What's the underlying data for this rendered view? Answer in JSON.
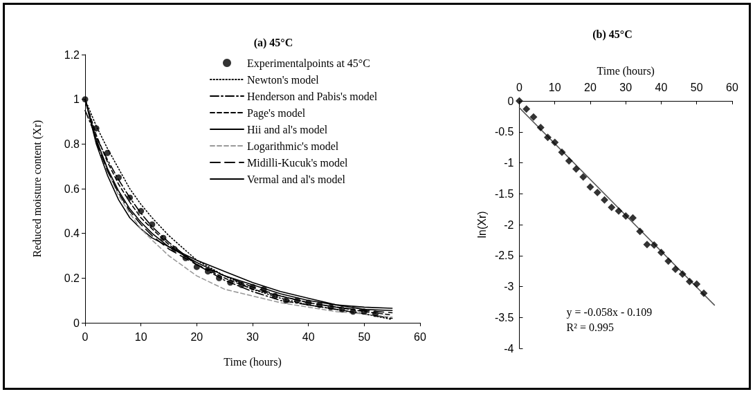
{
  "chart_data": [
    {
      "type": "line",
      "title": "(a) 45°C",
      "xlabel": "Time (hours)",
      "ylabel": "Reduced moisture content (Xr)",
      "xlim": [
        0,
        60
      ],
      "xticks": [
        0,
        10,
        20,
        30,
        40,
        50,
        60
      ],
      "ylim": [
        0,
        1.2
      ],
      "yticks": [
        0,
        0.2,
        0.4,
        0.6,
        0.8,
        1,
        1.2
      ],
      "grid": false,
      "legend": "top right",
      "series": [
        {
          "name": "Experimentalpoints at 45°C",
          "type": "scatter",
          "marker": "circle",
          "color": "#000000",
          "x": [
            0,
            2,
            4,
            6,
            8,
            10,
            12,
            14,
            16,
            18,
            20,
            22,
            24,
            26,
            28,
            30,
            32,
            34,
            36,
            38,
            40,
            42,
            44,
            46,
            48,
            50,
            52
          ],
          "values": [
            1,
            0.87,
            0.76,
            0.65,
            0.56,
            0.5,
            0.44,
            0.38,
            0.33,
            0.29,
            0.25,
            0.23,
            0.2,
            0.18,
            0.17,
            0.16,
            0.15,
            0.12,
            0.1,
            0.1,
            0.09,
            0.08,
            0.07,
            0.06,
            0.05,
            0.05,
            0.04
          ]
        },
        {
          "name": "Newton's model",
          "line_style": "dotted",
          "color": "#000000",
          "x": [
            0,
            2,
            4,
            6,
            8,
            10,
            12,
            15,
            20,
            25,
            30,
            35,
            40,
            45,
            50,
            55
          ],
          "values": [
            1,
            0.88,
            0.78,
            0.69,
            0.6,
            0.53,
            0.47,
            0.39,
            0.28,
            0.21,
            0.15,
            0.11,
            0.08,
            0.06,
            0.04,
            0.015
          ]
        },
        {
          "name": "Henderson and Pabis's model",
          "line_style": "dashdot",
          "color": "#000000",
          "x": [
            0,
            2,
            4,
            6,
            8,
            10,
            12,
            15,
            20,
            25,
            30,
            35,
            40,
            45,
            50,
            55
          ],
          "values": [
            0.95,
            0.83,
            0.73,
            0.64,
            0.56,
            0.49,
            0.43,
            0.36,
            0.26,
            0.19,
            0.14,
            0.1,
            0.08,
            0.06,
            0.04,
            0.02
          ]
        },
        {
          "name": "Page's model",
          "line_style": "dashed",
          "color": "#000000",
          "x": [
            0,
            2,
            4,
            6,
            8,
            10,
            12,
            15,
            20,
            25,
            30,
            35,
            40,
            45,
            50,
            55
          ],
          "values": [
            1,
            0.84,
            0.72,
            0.62,
            0.54,
            0.47,
            0.42,
            0.35,
            0.26,
            0.2,
            0.15,
            0.12,
            0.09,
            0.07,
            0.05,
            0.035
          ]
        },
        {
          "name": "Hii and al's model",
          "line_style": "solid",
          "color": "#000000",
          "x": [
            0,
            2,
            4,
            6,
            8,
            10,
            12,
            15,
            20,
            25,
            30,
            35,
            40,
            45,
            50,
            55
          ],
          "values": [
            1,
            0.8,
            0.66,
            0.55,
            0.47,
            0.42,
            0.38,
            0.34,
            0.28,
            0.23,
            0.18,
            0.14,
            0.11,
            0.08,
            0.07,
            0.065
          ]
        },
        {
          "name": "Logarithmic's model",
          "line_style": "dashed",
          "color": "#999999",
          "x": [
            0,
            2,
            4,
            6,
            8,
            10,
            12,
            15,
            20,
            25,
            30,
            35,
            40,
            45,
            50,
            55
          ],
          "values": [
            1,
            0.82,
            0.68,
            0.57,
            0.49,
            0.42,
            0.37,
            0.3,
            0.21,
            0.15,
            0.12,
            0.09,
            0.07,
            0.05,
            0.04,
            0.025
          ]
        },
        {
          "name": "Midilli-Kucuk's model",
          "line_style": "longdash",
          "color": "#000000",
          "x": [
            0,
            2,
            4,
            6,
            8,
            10,
            12,
            15,
            20,
            25,
            30,
            35,
            40,
            45,
            50,
            55
          ],
          "values": [
            1,
            0.81,
            0.68,
            0.58,
            0.5,
            0.44,
            0.39,
            0.33,
            0.26,
            0.21,
            0.16,
            0.12,
            0.09,
            0.07,
            0.055,
            0.045
          ]
        },
        {
          "name": "Vermal and al's model",
          "line_style": "solid",
          "color": "#000000",
          "x": [
            0,
            2,
            4,
            6,
            8,
            10,
            12,
            15,
            20,
            25,
            30,
            35,
            40,
            45,
            50,
            55
          ],
          "values": [
            1,
            0.82,
            0.69,
            0.59,
            0.51,
            0.45,
            0.4,
            0.34,
            0.27,
            0.21,
            0.17,
            0.13,
            0.1,
            0.08,
            0.06,
            0.055
          ]
        }
      ]
    },
    {
      "type": "scatter",
      "title": "(b) 45°C",
      "xlabel": "Time (hours)",
      "ylabel": "ln(Xr)",
      "xlim": [
        0,
        60
      ],
      "xticks": [
        0,
        10,
        20,
        30,
        40,
        50,
        60
      ],
      "ylim": [
        -4,
        0
      ],
      "yticks": [
        -4,
        -3.5,
        -3,
        -2.5,
        -2,
        -1.5,
        -1,
        -0.5,
        0
      ],
      "grid": false,
      "annotations": [
        "y = -0.058x - 0.109",
        "R² = 0.995"
      ],
      "series": [
        {
          "marker": "diamond",
          "color": "#000000",
          "x": [
            0,
            2,
            4,
            6,
            8,
            10,
            12,
            14,
            16,
            18,
            20,
            22,
            24,
            26,
            28,
            30,
            32,
            34,
            36,
            38,
            40,
            42,
            44,
            46,
            48,
            50,
            52
          ],
          "values": [
            0,
            -0.13,
            -0.26,
            -0.43,
            -0.59,
            -0.67,
            -0.83,
            -0.97,
            -1.1,
            -1.23,
            -1.39,
            -1.48,
            -1.6,
            -1.72,
            -1.78,
            -1.86,
            -1.89,
            -2.11,
            -2.32,
            -2.33,
            -2.45,
            -2.59,
            -2.72,
            -2.8,
            -2.92,
            -2.96,
            -3.11
          ]
        },
        {
          "type": "line",
          "marker": "none",
          "line_style": "solid",
          "color": "#555555",
          "x": [
            0,
            55
          ],
          "values": [
            -0.11,
            -3.3
          ]
        }
      ]
    }
  ]
}
